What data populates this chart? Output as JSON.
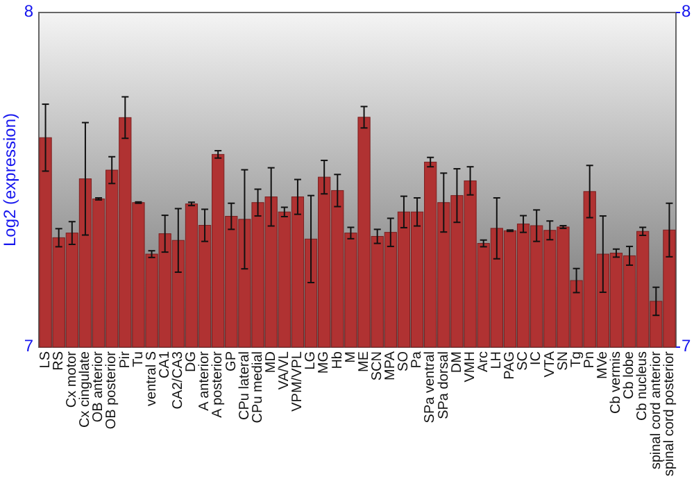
{
  "chart_data": {
    "type": "bar",
    "ylabel": "Log2 (expression)",
    "categories": [
      "LS",
      "RS",
      "Cx motor",
      "Cx cingulate",
      "OB anterior",
      "OB posterior",
      "Pir",
      "Tu",
      "ventral S",
      "CA1",
      "CA2/CA3",
      "DG",
      "A anterior",
      "A posterior",
      "GP",
      "CPu lateral",
      "CPu medial",
      "MD",
      "VA/VL",
      "VPM/VPL",
      "LG",
      "MG",
      "Hb",
      "M",
      "ME",
      "SCN",
      "MPA",
      "SO",
      "Pa",
      "SPa ventral",
      "SPa dorsal",
      "DM",
      "VMH",
      "Arc",
      "LH",
      "PAG",
      "SC",
      "IC",
      "VTA",
      "SN",
      "Tg",
      "Pn",
      "MVe",
      "Cb vermis",
      "Cb lobe",
      "Cb nucleus",
      "spinal cord anterior",
      "spinal cord posterior"
    ],
    "values": [
      7.626,
      7.327,
      7.341,
      7.503,
      7.443,
      7.529,
      7.686,
      7.432,
      7.278,
      7.339,
      7.319,
      7.428,
      7.364,
      7.576,
      7.391,
      7.382,
      7.432,
      7.449,
      7.404,
      7.449,
      7.323,
      7.508,
      7.468,
      7.341,
      7.687,
      7.331,
      7.343,
      7.404,
      7.404,
      7.553,
      7.432,
      7.453,
      7.497,
      7.31,
      7.355,
      7.348,
      7.368,
      7.363,
      7.349,
      7.359,
      7.199,
      7.465,
      7.278,
      7.281,
      7.273,
      7.346,
      7.137,
      7.35
    ],
    "errors": [
      0.1,
      0.027,
      0.034,
      0.168,
      0.003,
      0.04,
      0.062,
      0.002,
      0.01,
      0.055,
      0.095,
      0.005,
      0.048,
      0.011,
      0.039,
      0.148,
      0.04,
      0.087,
      0.014,
      0.052,
      0.13,
      0.05,
      0.048,
      0.017,
      0.032,
      0.021,
      0.042,
      0.047,
      0.042,
      0.014,
      0.088,
      0.08,
      0.042,
      0.01,
      0.091,
      0.002,
      0.025,
      0.047,
      0.028,
      0.004,
      0.036,
      0.078,
      0.114,
      0.012,
      0.028,
      0.012,
      0.042,
      0.08
    ],
    "color": "#b03232",
    "ylim": [
      7,
      8
    ],
    "yticks": [
      7,
      8
    ],
    "y2lim": [
      7,
      8
    ],
    "y2ticks": [
      7,
      8
    ]
  }
}
